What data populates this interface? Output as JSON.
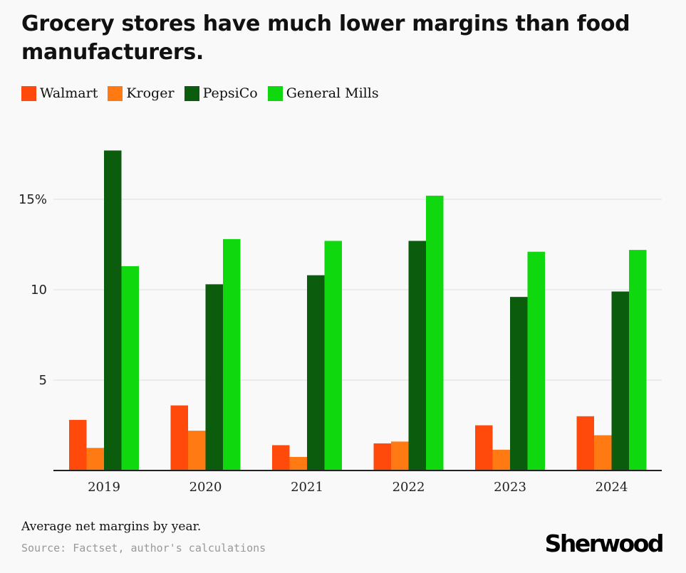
{
  "title": "Grocery stores have much lower margins than food manufacturers.",
  "caption": "Average net margins by year.",
  "source": "Source: Factset, author's calculations",
  "logo_text": "Sherwood",
  "colors": {
    "walmart": "#ff4a0b",
    "kroger": "#ff7a12",
    "pepsico": "#0b5c0d",
    "general_mills": "#0fd80f",
    "grid": "#dddddd",
    "axis": "#222222"
  },
  "chart_data": {
    "type": "bar",
    "categories": [
      "2019",
      "2020",
      "2021",
      "2022",
      "2023",
      "2024"
    ],
    "series": [
      {
        "name": "Walmart",
        "color": "#ff4a0b",
        "values": [
          2.8,
          3.6,
          1.4,
          1.5,
          2.5,
          3.0
        ]
      },
      {
        "name": "Kroger",
        "color": "#ff7a12",
        "values": [
          1.25,
          2.2,
          0.75,
          1.6,
          1.15,
          1.95
        ]
      },
      {
        "name": "PepsiCo",
        "color": "#0b5c0d",
        "values": [
          17.7,
          10.3,
          10.8,
          12.7,
          9.6,
          9.9
        ]
      },
      {
        "name": "General Mills",
        "color": "#0fd80f",
        "values": [
          11.3,
          12.8,
          12.7,
          15.2,
          12.1,
          12.2
        ]
      }
    ],
    "y_ticks": [
      {
        "value": 5,
        "label": "5"
      },
      {
        "value": 10,
        "label": "10"
      },
      {
        "value": 15,
        "label": "15%"
      }
    ],
    "ylim": [
      0,
      18
    ],
    "grid": true,
    "legend_position": "top-left"
  }
}
